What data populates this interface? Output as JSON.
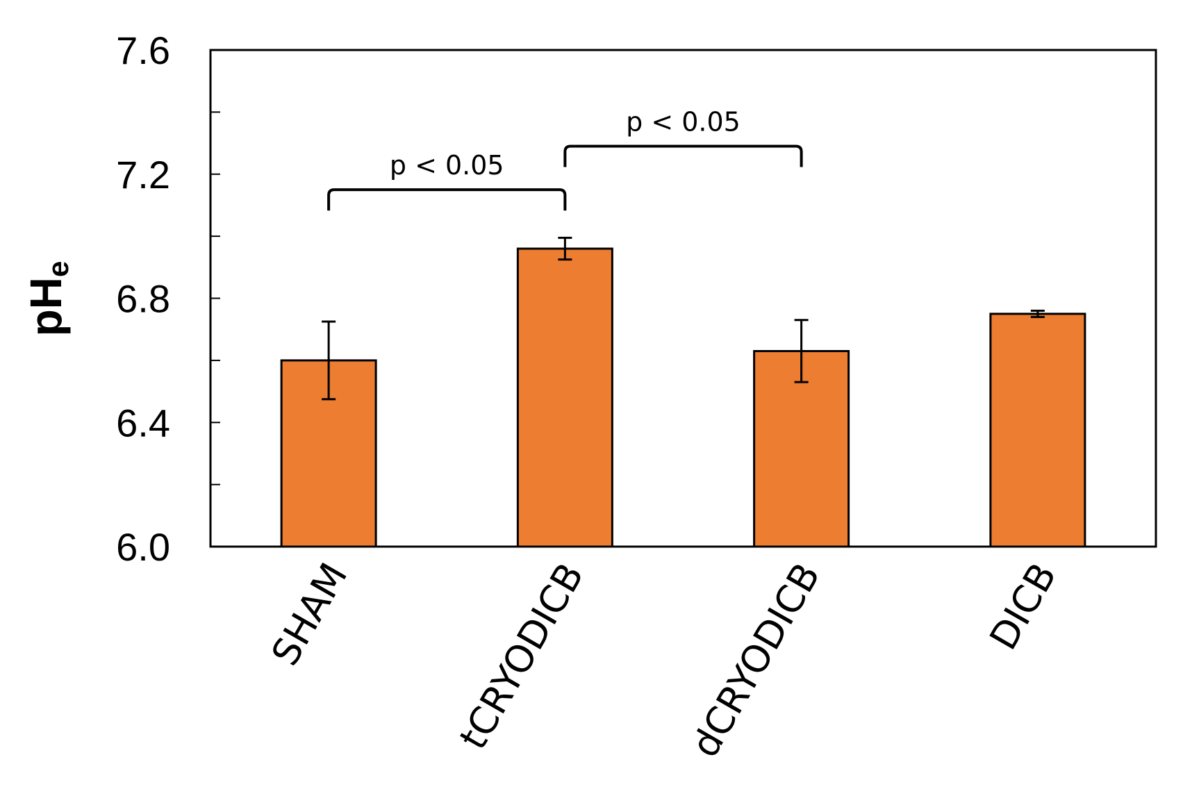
{
  "chart_data": {
    "type": "bar",
    "categories": [
      "SHAM",
      "tCRYODICB",
      "dCRYODICB",
      "DICB"
    ],
    "values": [
      6.6,
      6.96,
      6.63,
      6.75
    ],
    "errors": [
      0.125,
      0.035,
      0.1,
      0.01
    ],
    "ylabel_main": "pH",
    "ylabel_sub": "e",
    "xlabel": "",
    "ylim": [
      6.0,
      7.6
    ],
    "yticks": [
      6.0,
      6.4,
      6.8,
      7.2,
      7.6
    ],
    "ytick_labels": [
      "6.0",
      "6.4",
      "6.8",
      "7.2",
      "7.6"
    ],
    "minor_yticks": [
      6.2,
      6.6,
      7.0,
      7.4
    ],
    "bar_color": "#ED7D31",
    "annotations": [
      {
        "from": 0,
        "to": 1,
        "text": "p < 0.05",
        "level": 7.15
      },
      {
        "from": 1,
        "to": 2,
        "text": "p < 0.05",
        "level": 7.29
      }
    ]
  }
}
